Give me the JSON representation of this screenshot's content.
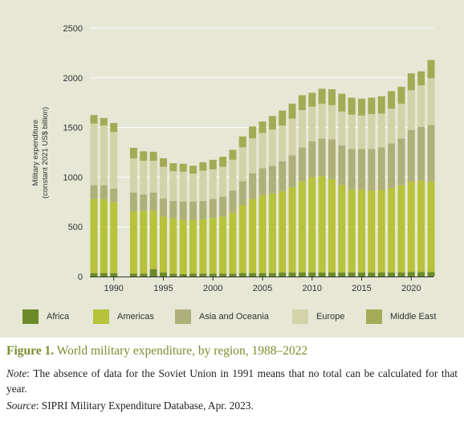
{
  "chart_data": {
    "type": "bar",
    "stacked": true,
    "ylabel": [
      "Military expenditure",
      "(constant 2021 US$ billion)"
    ],
    "ylim": [
      0,
      2500
    ],
    "yticks": [
      0,
      500,
      1000,
      1500,
      2000,
      2500
    ],
    "xlim": [
      1988,
      2022
    ],
    "xticks": [
      1990,
      1995,
      2000,
      2005,
      2010,
      2015,
      2020
    ],
    "grid": true,
    "legend_position": "bottom",
    "categories": [
      1988,
      1989,
      1990,
      1991,
      1992,
      1993,
      1994,
      1995,
      1996,
      1997,
      1998,
      1999,
      2000,
      2001,
      2002,
      2003,
      2004,
      2005,
      2006,
      2007,
      2008,
      2009,
      2010,
      2011,
      2012,
      2013,
      2014,
      2015,
      2016,
      2017,
      2018,
      2019,
      2020,
      2021,
      2022
    ],
    "series": [
      {
        "name": "Africa",
        "color": "#6b8a2a",
        "values": [
          35,
          35,
          35,
          null,
          30,
          30,
          75,
          40,
          30,
          25,
          30,
          30,
          30,
          30,
          30,
          35,
          35,
          35,
          35,
          40,
          40,
          40,
          40,
          40,
          40,
          40,
          40,
          40,
          40,
          40,
          40,
          40,
          45,
          45,
          45
        ]
      },
      {
        "name": "Americas",
        "color": "#b8c23a",
        "values": [
          745,
          745,
          715,
          null,
          625,
          630,
          590,
          565,
          555,
          545,
          540,
          545,
          560,
          575,
          615,
          685,
          745,
          785,
          800,
          820,
          860,
          920,
          960,
          970,
          940,
          880,
          835,
          835,
          825,
          830,
          850,
          880,
          910,
          920,
          910
        ]
      },
      {
        "name": "Asia and Oceania",
        "color": "#aeb07a",
        "values": [
          140,
          140,
          135,
          null,
          190,
          165,
          180,
          180,
          175,
          185,
          185,
          185,
          190,
          200,
          220,
          240,
          260,
          270,
          280,
          300,
          320,
          340,
          360,
          380,
          400,
          400,
          410,
          410,
          420,
          430,
          450,
          470,
          520,
          540,
          570
        ]
      },
      {
        "name": "Europe",
        "color": "#d2d3a9",
        "values": [
          620,
          600,
          570,
          null,
          345,
          340,
          320,
          320,
          300,
          300,
          280,
          305,
          300,
          300,
          310,
          340,
          350,
          355,
          365,
          360,
          370,
          375,
          350,
          350,
          345,
          340,
          345,
          335,
          350,
          340,
          350,
          350,
          400,
          420,
          470
        ]
      },
      {
        "name": "Middle East",
        "color": "#a3ab55",
        "values": [
          85,
          75,
          90,
          null,
          105,
          95,
          90,
          85,
          80,
          80,
          80,
          85,
          95,
          100,
          100,
          110,
          120,
          115,
          135,
          150,
          150,
          150,
          140,
          150,
          160,
          180,
          170,
          170,
          165,
          175,
          175,
          170,
          170,
          140,
          185
        ]
      }
    ]
  },
  "caption": {
    "label": "Figure 1.",
    "text": "World military expenditure, by region, 1988–2022"
  },
  "note": {
    "label": "Note",
    "text": ": The absence of data for the Soviet Union in 1991 means that no total can be calculated for that year."
  },
  "source": {
    "label": "Source",
    "text": ": SIPRI Military Expenditure Database, Apr. 2023."
  }
}
